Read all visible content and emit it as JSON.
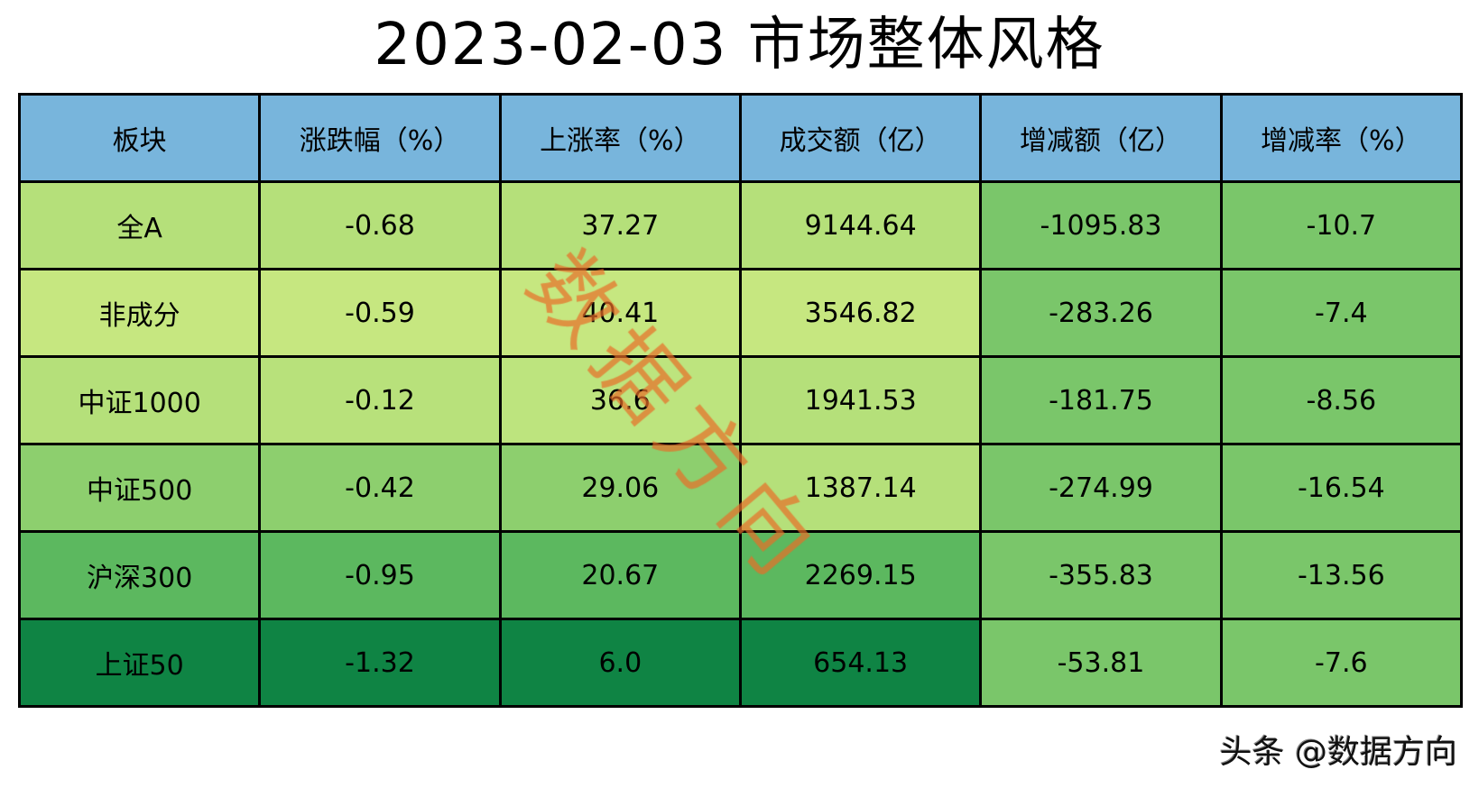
{
  "title": "2023-02-03 市场整体风格",
  "headers": [
    "板块",
    "涨跌幅（%）",
    "上涨率（%）",
    "成交额（亿）",
    "增减额（亿）",
    "增减率（%）"
  ],
  "rows": [
    {
      "cells": [
        "全A",
        "-0.68",
        "37.27",
        "9144.64",
        "-1095.83",
        "-10.7"
      ],
      "colors": [
        "#b5e07a",
        "#b5e07a",
        "#b5e07a",
        "#b5e07a",
        "#7ac66a",
        "#7ac66a"
      ]
    },
    {
      "cells": [
        "非成分",
        "-0.59",
        "40.41",
        "3546.82",
        "-283.26",
        "-7.4"
      ],
      "colors": [
        "#c6e780",
        "#c6e780",
        "#c6e780",
        "#c6e780",
        "#7ac66a",
        "#7ac66a"
      ]
    },
    {
      "cells": [
        "中证1000",
        "-0.12",
        "36.6",
        "1941.53",
        "-181.75",
        "-8.56"
      ],
      "colors": [
        "#b5e07a",
        "#b8e17b",
        "#bde47e",
        "#b5e07a",
        "#7ac66a",
        "#7ac66a"
      ]
    },
    {
      "cells": [
        "中证500",
        "-0.42",
        "29.06",
        "1387.14",
        "-274.99",
        "-16.54"
      ],
      "colors": [
        "#8dcf6e",
        "#8dcf6e",
        "#8dcf6e",
        "#b5e07a",
        "#7ac66a",
        "#7ac66a"
      ]
    },
    {
      "cells": [
        "沪深300",
        "-0.95",
        "20.67",
        "2269.15",
        "-355.83",
        "-13.56"
      ],
      "colors": [
        "#5cb85f",
        "#5cb85f",
        "#5cb85f",
        "#5cb85f",
        "#7ac66a",
        "#7ac66a"
      ]
    },
    {
      "cells": [
        "上证50",
        "-1.32",
        "6.0",
        "654.13",
        "-53.81",
        "-7.6"
      ],
      "colors": [
        "#0f8444",
        "#0f8444",
        "#0f8444",
        "#0f8444",
        "#7ac66a",
        "#7ac66a"
      ]
    }
  ],
  "header_color": "#78b5dc",
  "watermark": "数据方向",
  "credit": "头条 @数据方向"
}
